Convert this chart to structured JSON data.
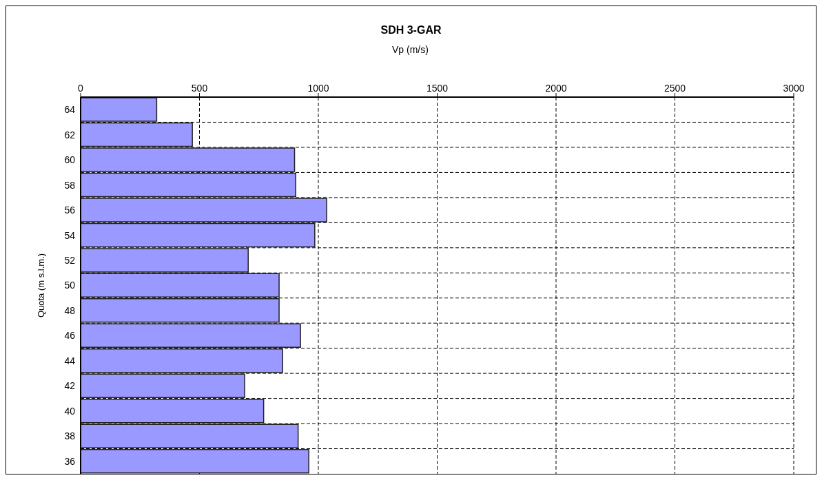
{
  "chart_data": {
    "type": "bar",
    "orientation": "horizontal",
    "title": "SDH 3-GAR",
    "xlabel": "Vp (m/s)",
    "ylabel": "Quota (m s.l.m.)",
    "categories": [
      "64",
      "62",
      "60",
      "58",
      "56",
      "54",
      "52",
      "50",
      "48",
      "46",
      "44",
      "42",
      "40",
      "38",
      "36"
    ],
    "values": [
      320,
      470,
      900,
      905,
      1035,
      985,
      705,
      835,
      835,
      925,
      850,
      690,
      770,
      915,
      960
    ],
    "color": "#9999ff",
    "xlim": [
      0,
      3000
    ],
    "xticks": [
      0,
      500,
      1000,
      1500,
      2000,
      2500,
      3000
    ],
    "grid": true,
    "legend": false
  }
}
